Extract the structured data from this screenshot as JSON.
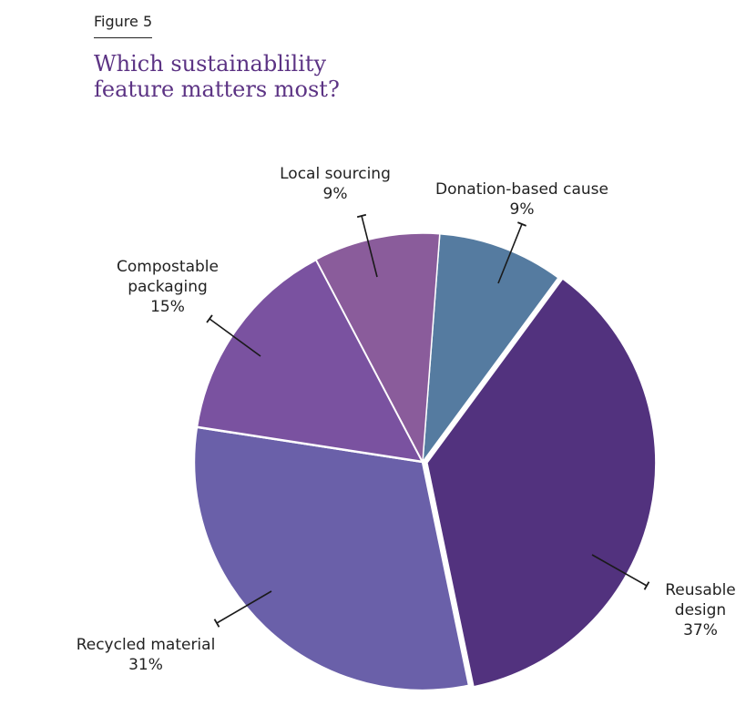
{
  "figure_label": "Figure 5",
  "title_lines": [
    "Which sustainablility",
    "feature matters most?"
  ],
  "chart_data": {
    "type": "pie",
    "title": "Which sustainablility feature matters most?",
    "start": "12 o'clock",
    "direction": "clockwise",
    "unit": "%",
    "slices": [
      {
        "label_lines": [
          "Donation-based cause"
        ],
        "value": 9,
        "value_label": "9%",
        "color": "#557ba0",
        "exploded": false
      },
      {
        "label_lines": [
          "Reusable",
          "design"
        ],
        "value": 37,
        "value_label": "37%",
        "color": "#52327e",
        "exploded": true
      },
      {
        "label_lines": [
          "Recycled material"
        ],
        "value": 31,
        "value_label": "31%",
        "color": "#6a60a9",
        "exploded": false
      },
      {
        "label_lines": [
          "Compostable",
          "packaging"
        ],
        "value": 15,
        "value_label": "15%",
        "color": "#7a52a0",
        "exploded": false
      },
      {
        "label_lines": [
          "Local sourcing"
        ],
        "value": 9,
        "value_label": "9%",
        "color": "#8a5c9b",
        "exploded": false
      }
    ],
    "legend": "none (direct labels with leader lines)"
  }
}
